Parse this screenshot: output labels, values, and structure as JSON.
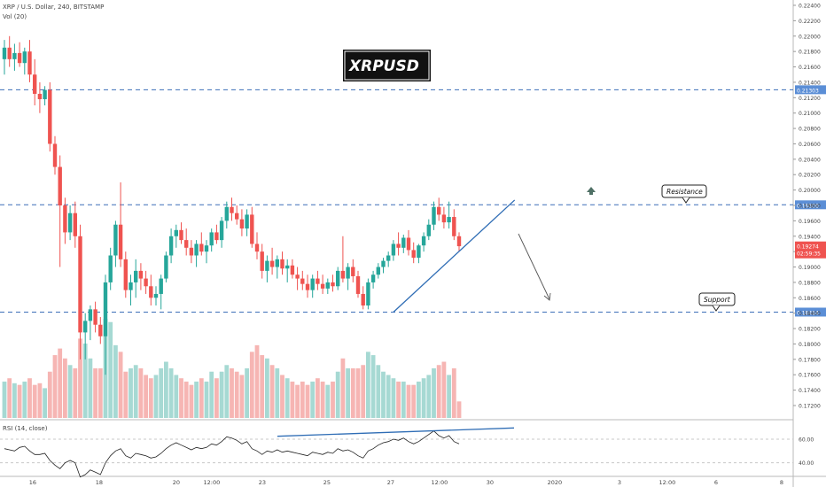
{
  "header": {
    "symbol_line": "XRP / U.S. Dollar, 240, BITSTAMP",
    "volume_label": "Vol (20)",
    "rsi_label": "RSI (14, close)"
  },
  "banner": {
    "text": "XRPUSD"
  },
  "callouts": {
    "resistance": "Resistance",
    "support": "Support"
  },
  "colors": {
    "up": "#26a69a",
    "down": "#ef5350",
    "vol_up": "#a6d9d3",
    "vol_down": "#f6b5b3",
    "level_line": "#3d6fb8",
    "level_tag": "#5b8ed6",
    "trend_line": "#2f6db5",
    "last_price_tag": "#ef5350",
    "arrow_marker": "#4f7065"
  },
  "price_axis": {
    "ticks": [
      "0.22400",
      "0.22200",
      "0.22000",
      "0.21800",
      "0.21600",
      "0.21400",
      "0.21200",
      "0.21000",
      "0.20800",
      "0.20600",
      "0.20400",
      "0.20200",
      "0.20000",
      "0.19800",
      "0.19600",
      "0.19400",
      "0.19200",
      "0.19000",
      "0.18800",
      "0.18600",
      "0.18400",
      "0.18200",
      "0.18000",
      "0.17800",
      "0.17600",
      "0.17400",
      "0.17200"
    ],
    "level_tags": [
      "0.21303",
      "0.19808",
      "0.18414"
    ],
    "last_price": "0.19274",
    "countdown": "02:59:35"
  },
  "rsi_axis": {
    "ticks": [
      "60.00",
      "40.00"
    ]
  },
  "time_axis": {
    "labels": [
      "16",
      "18",
      "20",
      "12:00",
      "23",
      "25",
      "27",
      "12:00",
      "30",
      "2020",
      "3",
      "12:00",
      "6",
      "8"
    ]
  },
  "chart_data": {
    "type": "candlestick",
    "title": "XRP / U.S. Dollar, 240, BITSTAMP",
    "y_range": [
      0.1705,
      0.225
    ],
    "levels": [
      0.21303,
      0.19808,
      0.18414
    ],
    "candles": [
      {
        "o": 0.217,
        "h": 0.2195,
        "l": 0.215,
        "c": 0.2185
      },
      {
        "o": 0.2185,
        "h": 0.22,
        "l": 0.216,
        "c": 0.217
      },
      {
        "o": 0.217,
        "h": 0.219,
        "l": 0.2155,
        "c": 0.2178
      },
      {
        "o": 0.2178,
        "h": 0.2192,
        "l": 0.216,
        "c": 0.2165
      },
      {
        "o": 0.2165,
        "h": 0.2185,
        "l": 0.215,
        "c": 0.218
      },
      {
        "o": 0.218,
        "h": 0.2195,
        "l": 0.214,
        "c": 0.215
      },
      {
        "o": 0.215,
        "h": 0.217,
        "l": 0.211,
        "c": 0.2125
      },
      {
        "o": 0.2125,
        "h": 0.214,
        "l": 0.21,
        "c": 0.2118
      },
      {
        "o": 0.2118,
        "h": 0.2135,
        "l": 0.211,
        "c": 0.213
      },
      {
        "o": 0.213,
        "h": 0.214,
        "l": 0.205,
        "c": 0.206
      },
      {
        "o": 0.206,
        "h": 0.207,
        "l": 0.202,
        "c": 0.203
      },
      {
        "o": 0.203,
        "h": 0.2045,
        "l": 0.19,
        "c": 0.198
      },
      {
        "o": 0.198,
        "h": 0.199,
        "l": 0.193,
        "c": 0.1945
      },
      {
        "o": 0.1945,
        "h": 0.198,
        "l": 0.1935,
        "c": 0.197
      },
      {
        "o": 0.197,
        "h": 0.1985,
        "l": 0.1925,
        "c": 0.194
      },
      {
        "o": 0.194,
        "h": 0.1955,
        "l": 0.178,
        "c": 0.1815
      },
      {
        "o": 0.1815,
        "h": 0.184,
        "l": 0.178,
        "c": 0.183
      },
      {
        "o": 0.183,
        "h": 0.185,
        "l": 0.1805,
        "c": 0.1845
      },
      {
        "o": 0.1845,
        "h": 0.1855,
        "l": 0.1815,
        "c": 0.1825
      },
      {
        "o": 0.1825,
        "h": 0.1835,
        "l": 0.18,
        "c": 0.181
      },
      {
        "o": 0.181,
        "h": 0.189,
        "l": 0.176,
        "c": 0.188
      },
      {
        "o": 0.188,
        "h": 0.1925,
        "l": 0.187,
        "c": 0.1915
      },
      {
        "o": 0.1915,
        "h": 0.196,
        "l": 0.19,
        "c": 0.1955
      },
      {
        "o": 0.1955,
        "h": 0.201,
        "l": 0.19,
        "c": 0.191
      },
      {
        "o": 0.191,
        "h": 0.192,
        "l": 0.186,
        "c": 0.187
      },
      {
        "o": 0.187,
        "h": 0.189,
        "l": 0.185,
        "c": 0.188
      },
      {
        "o": 0.188,
        "h": 0.191,
        "l": 0.186,
        "c": 0.1895
      },
      {
        "o": 0.1895,
        "h": 0.1905,
        "l": 0.187,
        "c": 0.1885
      },
      {
        "o": 0.1885,
        "h": 0.1895,
        "l": 0.1865,
        "c": 0.1875
      },
      {
        "o": 0.1875,
        "h": 0.189,
        "l": 0.185,
        "c": 0.186
      },
      {
        "o": 0.186,
        "h": 0.1875,
        "l": 0.185,
        "c": 0.1865
      },
      {
        "o": 0.1865,
        "h": 0.189,
        "l": 0.1845,
        "c": 0.1885
      },
      {
        "o": 0.1885,
        "h": 0.192,
        "l": 0.188,
        "c": 0.1915
      },
      {
        "o": 0.1915,
        "h": 0.195,
        "l": 0.1905,
        "c": 0.194
      },
      {
        "o": 0.194,
        "h": 0.1955,
        "l": 0.1925,
        "c": 0.1948
      },
      {
        "o": 0.1948,
        "h": 0.1958,
        "l": 0.193,
        "c": 0.1935
      },
      {
        "o": 0.1935,
        "h": 0.195,
        "l": 0.1915,
        "c": 0.1925
      },
      {
        "o": 0.1925,
        "h": 0.1935,
        "l": 0.1905,
        "c": 0.1915
      },
      {
        "o": 0.1915,
        "h": 0.1935,
        "l": 0.19,
        "c": 0.193
      },
      {
        "o": 0.193,
        "h": 0.1945,
        "l": 0.1915,
        "c": 0.192
      },
      {
        "o": 0.192,
        "h": 0.1935,
        "l": 0.1905,
        "c": 0.1928
      },
      {
        "o": 0.1928,
        "h": 0.195,
        "l": 0.192,
        "c": 0.1945
      },
      {
        "o": 0.1945,
        "h": 0.1955,
        "l": 0.193,
        "c": 0.1935
      },
      {
        "o": 0.1935,
        "h": 0.1965,
        "l": 0.1925,
        "c": 0.196
      },
      {
        "o": 0.196,
        "h": 0.1985,
        "l": 0.195,
        "c": 0.1978
      },
      {
        "o": 0.1978,
        "h": 0.199,
        "l": 0.196,
        "c": 0.197
      },
      {
        "o": 0.197,
        "h": 0.198,
        "l": 0.1955,
        "c": 0.1962
      },
      {
        "o": 0.1962,
        "h": 0.1975,
        "l": 0.194,
        "c": 0.195
      },
      {
        "o": 0.195,
        "h": 0.1975,
        "l": 0.194,
        "c": 0.1968
      },
      {
        "o": 0.1968,
        "h": 0.1978,
        "l": 0.1925,
        "c": 0.193
      },
      {
        "o": 0.193,
        "h": 0.1945,
        "l": 0.191,
        "c": 0.192
      },
      {
        "o": 0.192,
        "h": 0.193,
        "l": 0.1885,
        "c": 0.1895
      },
      {
        "o": 0.1895,
        "h": 0.1915,
        "l": 0.188,
        "c": 0.1908
      },
      {
        "o": 0.1908,
        "h": 0.1925,
        "l": 0.189,
        "c": 0.19
      },
      {
        "o": 0.19,
        "h": 0.1915,
        "l": 0.1885,
        "c": 0.191
      },
      {
        "o": 0.191,
        "h": 0.192,
        "l": 0.189,
        "c": 0.1898
      },
      {
        "o": 0.1898,
        "h": 0.191,
        "l": 0.188,
        "c": 0.1902
      },
      {
        "o": 0.1902,
        "h": 0.191,
        "l": 0.1885,
        "c": 0.189
      },
      {
        "o": 0.189,
        "h": 0.19,
        "l": 0.187,
        "c": 0.1885
      },
      {
        "o": 0.1885,
        "h": 0.1895,
        "l": 0.187,
        "c": 0.1878
      },
      {
        "o": 0.1878,
        "h": 0.189,
        "l": 0.186,
        "c": 0.187
      },
      {
        "o": 0.187,
        "h": 0.189,
        "l": 0.186,
        "c": 0.1885
      },
      {
        "o": 0.1885,
        "h": 0.1895,
        "l": 0.187,
        "c": 0.1878
      },
      {
        "o": 0.1878,
        "h": 0.189,
        "l": 0.1865,
        "c": 0.1872
      },
      {
        "o": 0.1872,
        "h": 0.1885,
        "l": 0.1865,
        "c": 0.188
      },
      {
        "o": 0.188,
        "h": 0.189,
        "l": 0.1868,
        "c": 0.1875
      },
      {
        "o": 0.1875,
        "h": 0.19,
        "l": 0.187,
        "c": 0.1895
      },
      {
        "o": 0.1895,
        "h": 0.194,
        "l": 0.188,
        "c": 0.1885
      },
      {
        "o": 0.1885,
        "h": 0.1905,
        "l": 0.187,
        "c": 0.19
      },
      {
        "o": 0.19,
        "h": 0.191,
        "l": 0.188,
        "c": 0.1888
      },
      {
        "o": 0.1888,
        "h": 0.1895,
        "l": 0.186,
        "c": 0.1865
      },
      {
        "o": 0.1865,
        "h": 0.1875,
        "l": 0.1845,
        "c": 0.185
      },
      {
        "o": 0.185,
        "h": 0.1885,
        "l": 0.1845,
        "c": 0.188
      },
      {
        "o": 0.188,
        "h": 0.1895,
        "l": 0.1872,
        "c": 0.189
      },
      {
        "o": 0.189,
        "h": 0.1905,
        "l": 0.1885,
        "c": 0.19
      },
      {
        "o": 0.19,
        "h": 0.1912,
        "l": 0.1892,
        "c": 0.1908
      },
      {
        "o": 0.1908,
        "h": 0.192,
        "l": 0.19,
        "c": 0.1915
      },
      {
        "o": 0.1915,
        "h": 0.1935,
        "l": 0.1908,
        "c": 0.193
      },
      {
        "o": 0.193,
        "h": 0.1945,
        "l": 0.1915,
        "c": 0.1925
      },
      {
        "o": 0.1925,
        "h": 0.1942,
        "l": 0.1918,
        "c": 0.1938
      },
      {
        "o": 0.1938,
        "h": 0.1948,
        "l": 0.1915,
        "c": 0.1922
      },
      {
        "o": 0.1922,
        "h": 0.1932,
        "l": 0.1905,
        "c": 0.1912
      },
      {
        "o": 0.1912,
        "h": 0.193,
        "l": 0.1905,
        "c": 0.1928
      },
      {
        "o": 0.1928,
        "h": 0.1945,
        "l": 0.192,
        "c": 0.194
      },
      {
        "o": 0.194,
        "h": 0.1962,
        "l": 0.1935,
        "c": 0.1955
      },
      {
        "o": 0.1955,
        "h": 0.1985,
        "l": 0.1948,
        "c": 0.1978
      },
      {
        "o": 0.1978,
        "h": 0.199,
        "l": 0.196,
        "c": 0.1968
      },
      {
        "o": 0.1968,
        "h": 0.1978,
        "l": 0.195,
        "c": 0.1958
      },
      {
        "o": 0.1958,
        "h": 0.1985,
        "l": 0.195,
        "c": 0.1965
      },
      {
        "o": 0.1965,
        "h": 0.1975,
        "l": 0.1935,
        "c": 0.194
      },
      {
        "o": 0.194,
        "h": 0.1945,
        "l": 0.192,
        "c": 0.1927
      }
    ],
    "volume": [
      22,
      24,
      21,
      20,
      22,
      24,
      20,
      21,
      18,
      28,
      38,
      42,
      36,
      32,
      30,
      48,
      45,
      36,
      30,
      30,
      60,
      58,
      44,
      40,
      28,
      30,
      32,
      30,
      26,
      24,
      26,
      30,
      34,
      30,
      26,
      24,
      22,
      20,
      22,
      24,
      22,
      28,
      24,
      28,
      32,
      30,
      28,
      26,
      30,
      40,
      44,
      38,
      36,
      32,
      30,
      26,
      24,
      22,
      20,
      22,
      20,
      22,
      24,
      22,
      20,
      22,
      28,
      36,
      30,
      30,
      30,
      32,
      40,
      38,
      32,
      28,
      26,
      24,
      22,
      22,
      20,
      20,
      22,
      24,
      26,
      30,
      32,
      34,
      26,
      30,
      10
    ],
    "rsi": [
      52,
      51,
      50,
      53,
      54,
      50,
      47,
      47,
      48,
      42,
      38,
      35,
      40,
      42,
      40,
      28,
      30,
      34,
      32,
      30,
      40,
      46,
      50,
      52,
      46,
      44,
      48,
      47,
      46,
      44,
      45,
      48,
      52,
      55,
      57,
      55,
      53,
      51,
      53,
      52,
      53,
      56,
      55,
      58,
      62,
      61,
      59,
      56,
      58,
      52,
      50,
      47,
      50,
      49,
      51,
      49,
      50,
      49,
      48,
      47,
      46,
      49,
      48,
      47,
      49,
      48,
      52,
      50,
      51,
      49,
      46,
      44,
      50,
      52,
      55,
      57,
      58,
      60,
      59,
      61,
      58,
      56,
      58,
      61,
      64,
      67,
      63,
      61,
      63,
      58,
      56
    ],
    "trendlines": [
      {
        "label": "ascending support",
        "from_index": 77,
        "from_price": 0.18414,
        "to_index": 101,
        "to_price": 0.1987
      },
      {
        "label": "RSI trend",
        "from_rsi": 62.5,
        "to_rsi": 69.5
      }
    ]
  }
}
